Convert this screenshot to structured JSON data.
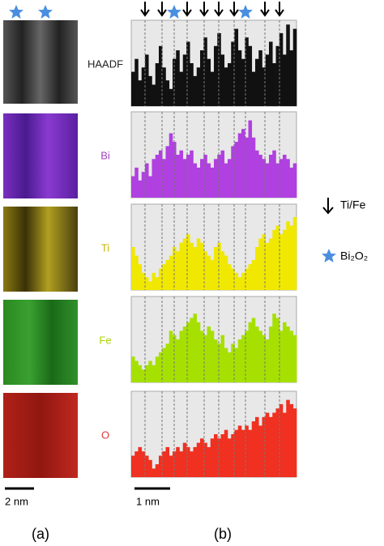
{
  "panel_a": {
    "scale_bar": "2 nm",
    "caption": "(a)"
  },
  "panel_b": {
    "scale_bar": "1 nm",
    "caption": "(b)",
    "profiles": [
      {
        "label": "HAADF",
        "color": "#111111",
        "values": [
          40,
          55,
          30,
          45,
          60,
          35,
          25,
          50,
          70,
          45,
          30,
          20,
          55,
          65,
          40,
          60,
          75,
          50,
          35,
          45,
          65,
          80,
          55,
          40,
          70,
          85,
          60,
          45,
          50,
          75,
          90,
          65,
          55,
          80,
          70,
          40,
          55,
          65,
          45,
          60,
          75,
          50,
          70,
          85,
          60,
          95,
          65,
          90
        ]
      },
      {
        "label": "Bi",
        "color": "#b040e0",
        "values": [
          25,
          35,
          20,
          30,
          40,
          25,
          45,
          50,
          55,
          45,
          60,
          75,
          65,
          50,
          55,
          45,
          50,
          55,
          40,
          35,
          45,
          50,
          40,
          35,
          45,
          50,
          55,
          40,
          45,
          60,
          65,
          75,
          80,
          70,
          90,
          70,
          55,
          50,
          45,
          40,
          50,
          55,
          40,
          45,
          50,
          45,
          35,
          40
        ]
      },
      {
        "label": "Ti",
        "color": "#f0e800",
        "values": [
          50,
          40,
          30,
          20,
          15,
          10,
          20,
          15,
          25,
          30,
          35,
          40,
          50,
          45,
          55,
          60,
          65,
          55,
          50,
          60,
          55,
          45,
          40,
          35,
          50,
          55,
          45,
          40,
          30,
          25,
          20,
          15,
          20,
          25,
          30,
          35,
          50,
          60,
          65,
          55,
          60,
          70,
          75,
          65,
          70,
          80,
          75,
          85
        ]
      },
      {
        "label": "Fe",
        "color": "#a6e000",
        "values": [
          30,
          25,
          20,
          15,
          20,
          25,
          20,
          30,
          35,
          40,
          45,
          60,
          55,
          50,
          60,
          65,
          70,
          75,
          80,
          70,
          60,
          55,
          65,
          60,
          50,
          45,
          55,
          40,
          35,
          45,
          40,
          50,
          55,
          60,
          70,
          75,
          65,
          60,
          55,
          50,
          65,
          80,
          75,
          60,
          70,
          65,
          60,
          55
        ]
      },
      {
        "label": "O",
        "color": "#f03020",
        "values": [
          25,
          30,
          35,
          30,
          25,
          20,
          10,
          15,
          25,
          30,
          35,
          25,
          30,
          35,
          30,
          40,
          35,
          30,
          35,
          40,
          45,
          40,
          35,
          45,
          50,
          45,
          50,
          55,
          45,
          50,
          55,
          60,
          55,
          60,
          55,
          65,
          70,
          60,
          70,
          75,
          70,
          75,
          80,
          85,
          75,
          90,
          85,
          80
        ]
      }
    ]
  },
  "legend": {
    "arrow": "Ti/Fe",
    "star": "Bi₂O₂"
  }
}
